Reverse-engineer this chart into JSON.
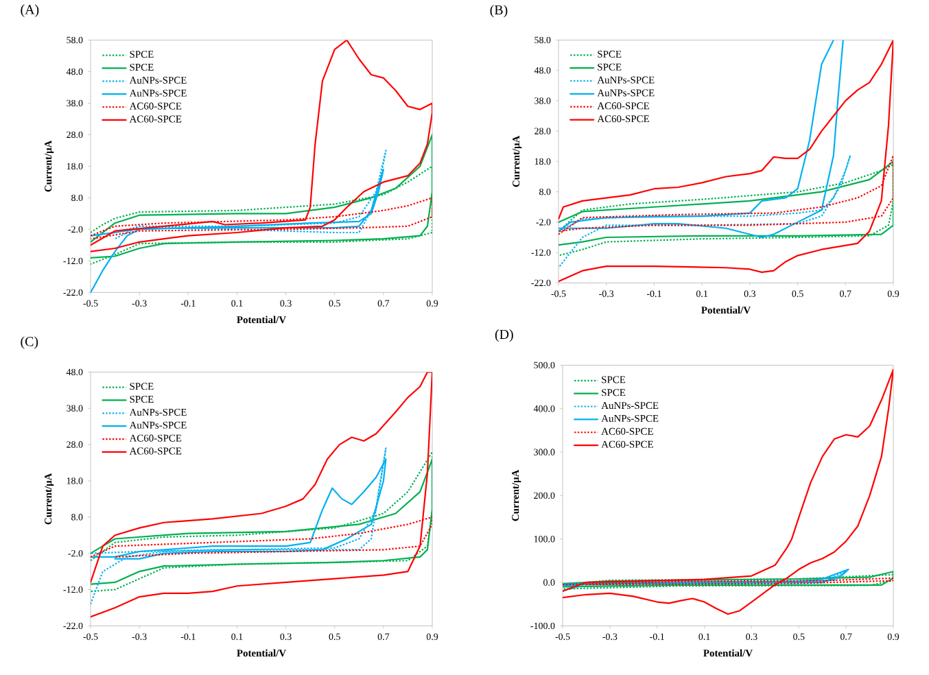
{
  "chart_data": [
    {
      "type": "line",
      "title": "(A)",
      "xlabel": "Potential/V",
      "ylabel": "Current/μA",
      "legend": "top left",
      "xlim": [
        -0.5,
        0.9
      ],
      "xticks": [
        -0.5,
        -0.3,
        -0.1,
        0.1,
        0.3,
        0.5,
        0.7,
        0.9
      ],
      "ylim": [
        -22,
        58
      ],
      "yticks": [
        {
          "value": -22,
          "label": "-22.0"
        },
        {
          "value": -12,
          "label": "-12.0"
        },
        {
          "value": -2,
          "label": "-2.0"
        },
        {
          "value": 8,
          "label": "8.0"
        },
        {
          "value": 18,
          "label": "18.0"
        },
        {
          "value": 28,
          "label": "28.0"
        },
        {
          "value": 38,
          "label": "38.0"
        },
        {
          "value": 48,
          "label": "48.0"
        },
        {
          "value": 58,
          "label": "58.0"
        }
      ],
      "series": [
        {
          "name": "SPCE",
          "color": "#00b050",
          "line_style": "dotted",
          "x": [
            -0.5,
            -0.45,
            -0.4,
            -0.3,
            0.1,
            0.5,
            0.7,
            0.8,
            0.9,
            0.9,
            0.8,
            0.5,
            0.1,
            -0.3,
            -0.4,
            -0.5
          ],
          "values": [
            -3,
            -0.5,
            1.5,
            3.5,
            4,
            6,
            9,
            13,
            18,
            -3,
            -5,
            -6,
            -6,
            -6.5,
            -10,
            -13
          ]
        },
        {
          "name": "SPCE",
          "color": "#00b050",
          "line_style": "solid",
          "x": [
            -0.5,
            -0.4,
            -0.3,
            0.1,
            0.3,
            0.5,
            0.65,
            0.75,
            0.85,
            0.9,
            0.9,
            0.88,
            0.85,
            0.7,
            0.5,
            0.1,
            -0.2,
            -0.3,
            -0.4,
            -0.5
          ],
          "values": [
            -6,
            0,
            2.5,
            3,
            3,
            5,
            8,
            11,
            18,
            28,
            10,
            -1,
            -4,
            -5,
            -5.5,
            -6,
            -6.5,
            -8,
            -10.5,
            -11
          ]
        },
        {
          "name": "AuNPs-SPCE",
          "color": "#00b0f0",
          "line_style": "dotted",
          "x": [
            -0.5,
            -0.4,
            -0.3,
            0.1,
            0.5,
            0.6,
            0.67,
            0.71,
            0.69,
            0.65,
            0.6,
            0.5,
            0.1,
            -0.3,
            -0.4
          ],
          "values": [
            -4,
            -3,
            -1,
            -1,
            0,
            2,
            10,
            23,
            15,
            4,
            -3,
            -3,
            -2,
            -1,
            -5
          ]
        },
        {
          "name": "AuNPs-SPCE",
          "color": "#00b0f0",
          "line_style": "solid",
          "x": [
            -0.5,
            -0.45,
            -0.4,
            -0.35,
            -0.3,
            0.1,
            0.4,
            0.6,
            0.65,
            0.68,
            0.7,
            0.68,
            0.65,
            0.6,
            0.5,
            0.1,
            -0.3,
            -0.4,
            -0.5
          ],
          "values": [
            -22,
            -15,
            -9,
            -4,
            -2,
            -1,
            0,
            0.5,
            3,
            10,
            17,
            12,
            4,
            -1,
            -1.5,
            -1.5,
            -1.8,
            -3,
            -4
          ]
        },
        {
          "name": "AC60-SPCE",
          "color": "#ff0000",
          "line_style": "dotted",
          "x": [
            -0.5,
            -0.4,
            -0.2,
            0.3,
            0.5,
            0.7,
            0.8,
            0.9,
            0.9,
            0.8,
            0.6,
            0.3,
            0,
            -0.3,
            -0.5
          ],
          "values": [
            -4,
            -1,
            0,
            1,
            2,
            4,
            5.5,
            8,
            2,
            -1,
            -1.5,
            -2,
            -2.2,
            -2.5,
            -5
          ]
        },
        {
          "name": "AC60-SPCE",
          "color": "#ff0000",
          "line_style": "solid",
          "x": [
            -0.5,
            -0.4,
            -0.2,
            0,
            0.05,
            0.2,
            0.38,
            0.4,
            0.42,
            0.45,
            0.5,
            0.55,
            0.6,
            0.65,
            0.7,
            0.75,
            0.8,
            0.85,
            0.9,
            0.9,
            0.88,
            0.85,
            0.8,
            0.7,
            0.62,
            0.55,
            0.5,
            0.45,
            0.3,
            0.1,
            -0.1,
            -0.3,
            -0.4,
            -0.5
          ],
          "values": [
            -7,
            -2.5,
            -1,
            0.5,
            -0.5,
            0,
            1,
            5,
            25,
            45,
            55,
            58,
            52,
            47,
            46,
            42,
            37,
            36,
            38,
            35,
            25,
            19,
            15,
            13,
            10,
            5,
            1,
            -1,
            -1.5,
            -3,
            -4,
            -6,
            -8,
            -9
          ]
        }
      ]
    },
    {
      "type": "line",
      "title": "(B)",
      "xlabel": "Potential/V",
      "ylabel": "Current/μA",
      "legend": "top left",
      "xlim": [
        -0.5,
        0.9
      ],
      "xticks": [
        -0.5,
        -0.3,
        -0.1,
        0.1,
        0.3,
        0.5,
        0.7,
        0.9
      ],
      "ylim": [
        -22,
        58
      ],
      "yticks": [
        {
          "value": -22,
          "label": "-22.0"
        },
        {
          "value": -12,
          "label": "-12.0"
        },
        {
          "value": -2,
          "label": "-2.0"
        },
        {
          "value": 8,
          "label": "8.0"
        },
        {
          "value": 18,
          "label": "18.0"
        },
        {
          "value": 28,
          "label": "28.0"
        },
        {
          "value": 38,
          "label": "38.0"
        },
        {
          "value": 48,
          "label": "48.0"
        },
        {
          "value": 58,
          "label": "58.0"
        }
      ],
      "series": [
        {
          "name": "SPCE",
          "color": "#00b050",
          "line_style": "dotted",
          "x": [
            -0.5,
            -0.4,
            -0.2,
            0.1,
            0.5,
            0.7,
            0.85,
            0.9,
            0.9,
            0.88,
            0.8,
            0.5,
            0.1,
            -0.3,
            -0.4,
            -0.5
          ],
          "values": [
            -5,
            2,
            4,
            5.5,
            8,
            11,
            15,
            17,
            5,
            -3,
            -6.5,
            -7,
            -7.5,
            -8.5,
            -11,
            -13
          ]
        },
        {
          "name": "SPCE",
          "color": "#00b050",
          "line_style": "solid",
          "x": [
            -0.5,
            -0.4,
            -0.1,
            0.3,
            0.6,
            0.8,
            0.9,
            0.9,
            0.85,
            0.5,
            0.1,
            -0.3,
            -0.4,
            -0.5
          ],
          "values": [
            -2,
            1.5,
            3,
            5,
            8,
            12,
            18,
            -3,
            -6,
            -6.5,
            -6.5,
            -7,
            -8.5,
            -9.5
          ]
        },
        {
          "name": "AuNPs-SPCE",
          "color": "#00b0f0",
          "line_style": "dotted",
          "x": [
            -0.5,
            -0.4,
            -0.1,
            0.3,
            0.5,
            0.6,
            0.65,
            0.7,
            0.72,
            0.68,
            0.6,
            0.5,
            0.1,
            -0.3,
            -0.4,
            -0.5
          ],
          "values": [
            -5,
            -1,
            0,
            0,
            1,
            2,
            6,
            15,
            20,
            10,
            0,
            -2.5,
            -3,
            -3,
            -7,
            -17
          ]
        },
        {
          "name": "AuNPs-SPCE",
          "color": "#00b0f0",
          "line_style": "solid",
          "x": [
            -0.5,
            -0.45,
            -0.3,
            0.1,
            0.3,
            0.35,
            0.45,
            0.5,
            0.55,
            0.6,
            0.65,
            0.67,
            0.69,
            0.67,
            0.65,
            0.6,
            0.5,
            0.4,
            0.35,
            0.2,
            0,
            -0.1,
            -0.3,
            -0.5
          ],
          "values": [
            -5,
            -2,
            -0.5,
            0,
            1,
            5,
            6,
            9,
            25,
            50,
            58,
            null,
            58,
            40,
            20,
            2,
            -2,
            -6,
            -7,
            -4,
            -2.5,
            -2.5,
            -4,
            -4
          ]
        },
        {
          "name": "AC60-SPCE",
          "color": "#ff0000",
          "line_style": "dotted",
          "x": [
            -0.5,
            -0.4,
            0,
            0.4,
            0.6,
            0.75,
            0.85,
            0.9,
            0.9,
            0.85,
            0.7,
            0.3,
            -0.1,
            -0.4,
            -0.5
          ],
          "values": [
            -6,
            -0.5,
            0.5,
            1,
            3,
            6,
            10,
            20,
            6,
            0,
            -2,
            -3,
            -3,
            -4,
            -5
          ]
        },
        {
          "name": "AC60-SPCE",
          "color": "#ff0000",
          "line_style": "solid",
          "x": [
            -0.5,
            -0.48,
            -0.4,
            -0.2,
            -0.1,
            0,
            0.1,
            0.2,
            0.3,
            0.35,
            0.4,
            0.45,
            0.5,
            0.55,
            0.6,
            0.65,
            0.7,
            0.75,
            0.8,
            0.85,
            0.9,
            0.88,
            0.85,
            0.8,
            0.75,
            0.6,
            0.5,
            0.45,
            0.4,
            0.35,
            0.3,
            0.2,
            -0.1,
            -0.3,
            -0.4,
            -0.5
          ],
          "values": [
            -1,
            3,
            5,
            7,
            9,
            9.5,
            11,
            13,
            14,
            15,
            19.5,
            19,
            19,
            22,
            28,
            33,
            38,
            41.5,
            44,
            50,
            58,
            30,
            5,
            -5,
            -9,
            -11,
            -13,
            -15,
            -18,
            -18.5,
            -17.5,
            -17,
            -16.5,
            -16.5,
            -18,
            -21.5
          ]
        }
      ]
    },
    {
      "type": "line",
      "title": "(C)",
      "xlabel": "Potential/V",
      "ylabel": "Current/μA",
      "legend": "top left",
      "xlim": [
        -0.5,
        0.9
      ],
      "xticks": [
        -0.5,
        -0.3,
        -0.1,
        0.1,
        0.3,
        0.5,
        0.7,
        0.9
      ],
      "ylim": [
        -22,
        48
      ],
      "yticks": [
        {
          "value": -22,
          "label": "-22.0"
        },
        {
          "value": -12,
          "label": "-12.0"
        },
        {
          "value": -2,
          "label": "-2.0"
        },
        {
          "value": 8,
          "label": "8.0"
        },
        {
          "value": 18,
          "label": "18.0"
        },
        {
          "value": 28,
          "label": "28.0"
        },
        {
          "value": 38,
          "label": "38.0"
        },
        {
          "value": 48,
          "label": "48.0"
        }
      ],
      "series": [
        {
          "name": "SPCE",
          "color": "#00b050",
          "line_style": "dotted",
          "x": [
            -0.5,
            -0.4,
            -0.2,
            0.1,
            0.5,
            0.7,
            0.8,
            0.9,
            0.9,
            0.88,
            0.8,
            0.5,
            0.1,
            -0.2,
            -0.3,
            -0.4,
            -0.5
          ],
          "values": [
            -4,
            1,
            2.5,
            3,
            5,
            9,
            15,
            26,
            10,
            0,
            -4,
            -4.5,
            -5,
            -6,
            -9,
            -12,
            -12.5
          ]
        },
        {
          "name": "SPCE",
          "color": "#00b050",
          "line_style": "solid",
          "x": [
            -0.5,
            -0.4,
            -0.1,
            0.3,
            0.6,
            0.75,
            0.85,
            0.9,
            0.9,
            0.88,
            0.85,
            0.7,
            0.5,
            0.1,
            -0.2,
            -0.3,
            -0.4,
            -0.5
          ],
          "values": [
            -2,
            2,
            3.5,
            4,
            6,
            9,
            15,
            24,
            10,
            -1,
            -3,
            -4,
            -4.5,
            -5,
            -5.5,
            -7,
            -10,
            -10.5
          ]
        },
        {
          "name": "AuNPs-SPCE",
          "color": "#00b0f0",
          "line_style": "dotted",
          "x": [
            -0.5,
            -0.45,
            -0.35,
            -0.2,
            0.1,
            0.5,
            0.6,
            0.67,
            0.71,
            0.68,
            0.65,
            0.6,
            0.3,
            0,
            -0.3,
            -0.5
          ],
          "values": [
            -16,
            -7,
            -3,
            -1.5,
            -1,
            -0.5,
            2,
            10,
            27,
            15,
            2,
            -1,
            -1,
            -1,
            -1.5,
            -2
          ]
        },
        {
          "name": "AuNPs-SPCE",
          "color": "#00b0f0",
          "line_style": "solid",
          "x": [
            -0.5,
            -0.4,
            -0.3,
            0,
            0.3,
            0.4,
            0.45,
            0.49,
            0.53,
            0.57,
            0.62,
            0.67,
            0.71,
            0.7,
            0.65,
            0.55,
            0.45,
            0.3,
            0,
            -0.2,
            -0.3,
            -0.4
          ],
          "values": [
            -3,
            -3,
            -1.5,
            0,
            0,
            1,
            10,
            16,
            13,
            11.5,
            15,
            19,
            24,
            18,
            6,
            2,
            -1,
            -1.5,
            -1.5,
            -2,
            -3.5,
            -3.5
          ]
        },
        {
          "name": "AC60-SPCE",
          "color": "#ff0000",
          "line_style": "dotted",
          "x": [
            -0.5,
            -0.4,
            0,
            0.4,
            0.6,
            0.8,
            0.9,
            0.9,
            0.85,
            0.7,
            0.3,
            -0.1,
            -0.4
          ],
          "values": [
            -3,
            0,
            1,
            2,
            3.5,
            6,
            8,
            6,
            0,
            -1,
            -1.5,
            -2,
            -3
          ]
        },
        {
          "name": "AC60-SPCE",
          "color": "#ff0000",
          "line_style": "solid",
          "x": [
            -0.5,
            -0.45,
            -0.4,
            -0.3,
            -0.2,
            0,
            0.2,
            0.3,
            0.37,
            0.42,
            0.47,
            0.52,
            0.57,
            0.62,
            0.67,
            0.75,
            0.8,
            0.85,
            0.88,
            0.9,
            0.88,
            0.85,
            0.8,
            0.7,
            0.5,
            0.3,
            0.1,
            0,
            -0.1,
            -0.2,
            -0.3,
            -0.4,
            -0.5
          ],
          "values": [
            -10,
            0,
            3,
            5,
            6.5,
            7.5,
            9,
            11,
            13,
            17,
            24,
            28,
            30,
            29,
            31,
            37,
            41,
            44,
            48,
            48,
            20,
            0,
            -7,
            -8,
            -9,
            -10,
            -11,
            -12.5,
            -13,
            -13,
            -14,
            -17,
            -19.5
          ]
        }
      ]
    },
    {
      "type": "line",
      "title": "(D)",
      "xlabel": "Potential/V",
      "ylabel": "Current/μA",
      "legend": "top left",
      "xlim": [
        -0.5,
        0.9
      ],
      "xticks": [
        -0.5,
        -0.3,
        -0.1,
        0.1,
        0.3,
        0.5,
        0.7,
        0.9
      ],
      "ylim": [
        -100,
        500
      ],
      "yticks": [
        {
          "value": -100,
          "label": "-100.0"
        },
        {
          "value": 0,
          "label": "0.0"
        },
        {
          "value": 100,
          "label": "100.0"
        },
        {
          "value": 200,
          "label": "200.0"
        },
        {
          "value": 300,
          "label": "300.0"
        },
        {
          "value": 400,
          "label": "400.0"
        },
        {
          "value": 500,
          "label": "500.0"
        }
      ],
      "series": [
        {
          "name": "SPCE",
          "color": "#00b050",
          "line_style": "dotted",
          "x": [
            -0.5,
            -0.3,
            0.5,
            0.9,
            0.9,
            0.8,
            0,
            -0.5
          ],
          "values": [
            -5,
            5,
            8,
            18,
            5,
            -7,
            -8,
            -15
          ]
        },
        {
          "name": "SPCE",
          "color": "#00b050",
          "line_style": "solid",
          "x": [
            -0.5,
            -0.3,
            0.5,
            0.8,
            0.9,
            0.9,
            0.85,
            0,
            -0.5
          ],
          "values": [
            -3,
            3,
            8,
            12,
            25,
            10,
            -6,
            -6,
            -10
          ]
        },
        {
          "name": "AuNPs-SPCE",
          "color": "#00b0f0",
          "line_style": "dotted",
          "x": [
            -0.5,
            -0.4,
            0,
            0.6,
            0.7,
            0.65,
            0,
            -0.5
          ],
          "values": [
            -20,
            -5,
            0,
            2,
            25,
            5,
            -2,
            -3
          ]
        },
        {
          "name": "AuNPs-SPCE",
          "color": "#00b0f0",
          "line_style": "solid",
          "x": [
            -0.5,
            -0.3,
            0.5,
            0.6,
            0.71,
            0.68,
            0.6,
            0,
            -0.5
          ],
          "values": [
            -8,
            0,
            2,
            8,
            30,
            15,
            0,
            -2,
            -5
          ]
        },
        {
          "name": "AC60-SPCE",
          "color": "#ff0000",
          "line_style": "dotted",
          "x": [
            -0.5,
            0,
            0.6,
            0.9,
            0.9,
            0.5,
            -0.4
          ],
          "values": [
            -5,
            2,
            4,
            10,
            4,
            -2,
            -5
          ]
        },
        {
          "name": "AC60-SPCE",
          "color": "#ff0000",
          "line_style": "solid",
          "x": [
            -0.5,
            -0.4,
            -0.2,
            0.1,
            0.3,
            0.4,
            0.45,
            0.47,
            0.5,
            0.55,
            0.6,
            0.65,
            0.7,
            0.75,
            0.8,
            0.85,
            0.9,
            0.88,
            0.85,
            0.8,
            0.75,
            0.7,
            0.65,
            0.6,
            0.55,
            0.5,
            0.45,
            0.4,
            0.35,
            0.3,
            0.25,
            0.2,
            0.15,
            0.1,
            0.05,
            0,
            -0.05,
            -0.1,
            -0.2,
            -0.3,
            -0.4,
            -0.5
          ],
          "values": [
            -20,
            0,
            3,
            7,
            15,
            40,
            80,
            100,
            150,
            230,
            290,
            330,
            340,
            335,
            360,
            420,
            490,
            400,
            290,
            200,
            130,
            95,
            70,
            55,
            45,
            30,
            10,
            -5,
            -25,
            -45,
            -65,
            -73,
            -60,
            -45,
            -37,
            -42,
            -48,
            -45,
            -32,
            -25,
            -28,
            -35
          ]
        }
      ]
    }
  ]
}
